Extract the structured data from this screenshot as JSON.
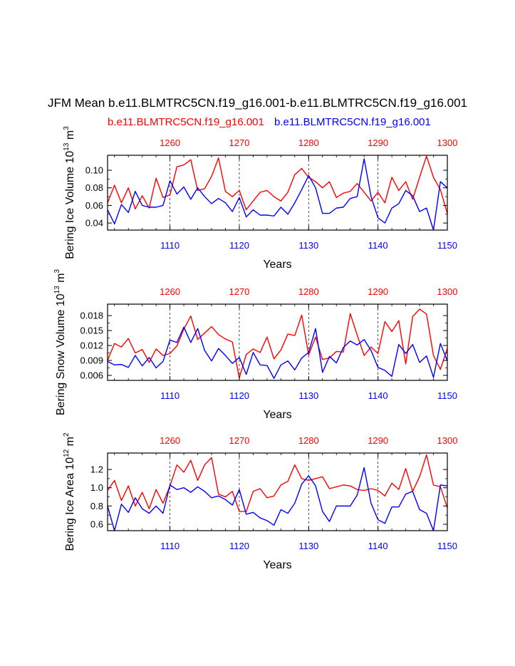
{
  "title": "JFM Mean b.e11.BLMTRC5CN.f19_g16.001-b.e11.BLMTRC5CN.f19_g16.001",
  "legend": {
    "red_label": "b.e11.BLMTRC5CN.f19_g16.001",
    "blue_label": "b.e11.BLMTRC5CN.f19_g16.001"
  },
  "colors": {
    "red": "#ff0000",
    "blue": "#0000ff",
    "axis": "#000000"
  },
  "chart_data": [
    {
      "type": "line",
      "ylabel_base": "Bering Ice Volume 10",
      "ylabel_exp": "13",
      "ylabel_unit": " m",
      "ylabel_unit_exp": "3",
      "xlabel": "Years",
      "bottom_xlim": [
        1101,
        1150
      ],
      "top_xlim": [
        1251,
        1300
      ],
      "ylim": [
        0.032,
        0.117
      ],
      "yticks": [
        0.04,
        0.06,
        0.08,
        0.1
      ],
      "ytick_labels": [
        "0.04",
        "0.06",
        "0.08",
        "0.10"
      ],
      "bottom_ticks": [
        1110,
        1120,
        1130,
        1140,
        1150
      ],
      "top_ticks": [
        1260,
        1270,
        1280,
        1290,
        1300
      ],
      "series": [
        {
          "name": "red",
          "x_axis": "top",
          "x": [
            1251,
            1252,
            1253,
            1254,
            1255,
            1256,
            1257,
            1258,
            1259,
            1260,
            1261,
            1262,
            1263,
            1264,
            1265,
            1266,
            1267,
            1268,
            1269,
            1270,
            1271,
            1272,
            1273,
            1274,
            1275,
            1276,
            1277,
            1278,
            1279,
            1280,
            1281,
            1282,
            1283,
            1284,
            1285,
            1286,
            1287,
            1288,
            1289,
            1290,
            1291,
            1292,
            1293,
            1294,
            1295,
            1296,
            1297,
            1298,
            1299,
            1300
          ],
          "values": [
            0.063,
            0.083,
            0.063,
            0.08,
            0.056,
            0.071,
            0.057,
            0.091,
            0.069,
            0.072,
            0.104,
            0.106,
            0.112,
            0.077,
            0.079,
            0.093,
            0.114,
            0.076,
            0.07,
            0.077,
            0.055,
            0.065,
            0.075,
            0.077,
            0.07,
            0.065,
            0.075,
            0.095,
            0.102,
            0.092,
            0.087,
            0.08,
            0.087,
            0.069,
            0.074,
            0.076,
            0.085,
            0.075,
            0.065,
            0.075,
            0.063,
            0.092,
            0.077,
            0.087,
            0.067,
            0.092,
            0.116,
            0.092,
            0.078,
            0.051
          ]
        },
        {
          "name": "blue",
          "x_axis": "bottom",
          "x": [
            1101,
            1102,
            1103,
            1104,
            1105,
            1106,
            1107,
            1108,
            1109,
            1110,
            1111,
            1112,
            1113,
            1114,
            1115,
            1116,
            1117,
            1118,
            1119,
            1120,
            1121,
            1122,
            1123,
            1124,
            1125,
            1126,
            1127,
            1128,
            1129,
            1130,
            1131,
            1132,
            1133,
            1134,
            1135,
            1136,
            1137,
            1138,
            1139,
            1140,
            1141,
            1142,
            1143,
            1144,
            1145,
            1146,
            1147,
            1148,
            1149,
            1150
          ],
          "values": [
            0.055,
            0.039,
            0.061,
            0.052,
            0.076,
            0.06,
            0.058,
            0.058,
            0.06,
            0.088,
            0.073,
            0.081,
            0.067,
            0.08,
            0.07,
            0.062,
            0.068,
            0.063,
            0.053,
            0.069,
            0.047,
            0.055,
            0.049,
            0.049,
            0.048,
            0.058,
            0.05,
            0.063,
            0.078,
            0.094,
            0.08,
            0.051,
            0.051,
            0.057,
            0.058,
            0.068,
            0.07,
            0.113,
            0.07,
            0.046,
            0.04,
            0.057,
            0.062,
            0.077,
            0.071,
            0.053,
            0.057,
            0.032,
            0.087,
            0.08
          ]
        }
      ]
    },
    {
      "type": "line",
      "ylabel_base": "Bering Snow Volume 10",
      "ylabel_exp": "13",
      "ylabel_unit": " m",
      "ylabel_unit_exp": "3",
      "xlabel": "Years",
      "bottom_xlim": [
        1101,
        1150
      ],
      "top_xlim": [
        1251,
        1300
      ],
      "ylim": [
        0.005,
        0.0203
      ],
      "yticks": [
        0.006,
        0.009,
        0.012,
        0.015,
        0.018
      ],
      "ytick_labels": [
        "0.006",
        "0.009",
        "0.012",
        "0.015",
        "0.018"
      ],
      "bottom_ticks": [
        1110,
        1120,
        1130,
        1140,
        1150
      ],
      "top_ticks": [
        1260,
        1270,
        1280,
        1290,
        1300
      ],
      "series": [
        {
          "name": "red",
          "x_axis": "top",
          "x": [
            1251,
            1252,
            1253,
            1254,
            1255,
            1256,
            1257,
            1258,
            1259,
            1260,
            1261,
            1262,
            1263,
            1264,
            1265,
            1266,
            1267,
            1268,
            1269,
            1270,
            1271,
            1272,
            1273,
            1274,
            1275,
            1276,
            1277,
            1278,
            1279,
            1280,
            1281,
            1282,
            1283,
            1284,
            1285,
            1286,
            1287,
            1288,
            1289,
            1290,
            1291,
            1292,
            1293,
            1294,
            1295,
            1296,
            1297,
            1298,
            1299,
            1300
          ],
          "values": [
            0.009,
            0.0124,
            0.0117,
            0.0134,
            0.0105,
            0.0112,
            0.0086,
            0.0113,
            0.01,
            0.0104,
            0.0119,
            0.0153,
            0.0179,
            0.0132,
            0.0145,
            0.0158,
            0.0142,
            0.0133,
            0.0127,
            0.0055,
            0.0102,
            0.0113,
            0.0106,
            0.0137,
            0.0093,
            0.0111,
            0.0143,
            0.014,
            0.0181,
            0.0101,
            0.0137,
            0.0092,
            0.0095,
            0.0108,
            0.0107,
            0.0184,
            0.0141,
            0.01,
            0.0117,
            0.0104,
            0.0168,
            0.0148,
            0.017,
            0.0083,
            0.0178,
            0.0193,
            0.0183,
            0.01,
            0.0072,
            0.0114
          ]
        },
        {
          "name": "blue",
          "x_axis": "bottom",
          "x": [
            1101,
            1102,
            1103,
            1104,
            1105,
            1106,
            1107,
            1108,
            1109,
            1110,
            1111,
            1112,
            1113,
            1114,
            1115,
            1116,
            1117,
            1118,
            1119,
            1120,
            1121,
            1122,
            1123,
            1124,
            1125,
            1126,
            1127,
            1128,
            1129,
            1130,
            1131,
            1132,
            1133,
            1134,
            1135,
            1136,
            1137,
            1138,
            1139,
            1140,
            1141,
            1142,
            1143,
            1144,
            1145,
            1146,
            1147,
            1148,
            1149,
            1150
          ],
          "values": [
            0.0088,
            0.0081,
            0.0082,
            0.0076,
            0.01,
            0.0079,
            0.0096,
            0.0075,
            0.0088,
            0.0131,
            0.0126,
            0.0157,
            0.0126,
            0.0154,
            0.011,
            0.0089,
            0.0114,
            0.01,
            0.0084,
            0.0096,
            0.0062,
            0.0106,
            0.0081,
            0.008,
            0.0054,
            0.0081,
            0.0089,
            0.0071,
            0.0095,
            0.0106,
            0.0154,
            0.0066,
            0.0098,
            0.0085,
            0.0116,
            0.0129,
            0.0121,
            0.0132,
            0.011,
            0.0076,
            0.007,
            0.0058,
            0.0122,
            0.0104,
            0.0122,
            0.0086,
            0.0099,
            0.0056,
            0.0124,
            0.0089
          ]
        }
      ]
    },
    {
      "type": "line",
      "ylabel_base": "Bering Ice Area 10",
      "ylabel_exp": "12",
      "ylabel_unit": " m",
      "ylabel_unit_exp": "2",
      "xlabel": "Years",
      "bottom_xlim": [
        1101,
        1150
      ],
      "top_xlim": [
        1251,
        1300
      ],
      "ylim": [
        0.53,
        1.38
      ],
      "yticks": [
        0.6,
        0.8,
        1.0,
        1.2
      ],
      "ytick_labels": [
        "0.6",
        "0.8",
        "1.0",
        "1.2"
      ],
      "bottom_ticks": [
        1110,
        1120,
        1130,
        1140,
        1150
      ],
      "top_ticks": [
        1260,
        1270,
        1280,
        1290,
        1300
      ],
      "series": [
        {
          "name": "red",
          "x_axis": "top",
          "x": [
            1251,
            1252,
            1253,
            1254,
            1255,
            1256,
            1257,
            1258,
            1259,
            1260,
            1261,
            1262,
            1263,
            1264,
            1265,
            1266,
            1267,
            1268,
            1269,
            1270,
            1271,
            1272,
            1273,
            1274,
            1275,
            1276,
            1277,
            1278,
            1279,
            1280,
            1281,
            1282,
            1283,
            1284,
            1285,
            1286,
            1287,
            1288,
            1289,
            1290,
            1291,
            1292,
            1293,
            1294,
            1295,
            1296,
            1297,
            1298,
            1299,
            1300
          ],
          "values": [
            0.97,
            1.08,
            0.86,
            1.02,
            0.8,
            0.95,
            0.77,
            0.98,
            0.83,
            1.02,
            1.25,
            1.17,
            1.3,
            1.08,
            1.25,
            1.33,
            0.93,
            0.9,
            0.96,
            0.74,
            0.74,
            0.96,
            0.99,
            0.89,
            0.91,
            1.03,
            1.07,
            1.25,
            1.1,
            1.08,
            1.1,
            1.12,
            0.99,
            1.01,
            1.03,
            1.02,
            0.98,
            0.97,
            0.99,
            0.97,
            0.91,
            1.05,
            0.98,
            1.21,
            0.96,
            1.12,
            1.36,
            1.03,
            1.01,
            0.78
          ]
        },
        {
          "name": "blue",
          "x_axis": "bottom",
          "x": [
            1101,
            1102,
            1103,
            1104,
            1105,
            1106,
            1107,
            1108,
            1109,
            1110,
            1111,
            1112,
            1113,
            1114,
            1115,
            1116,
            1117,
            1118,
            1119,
            1120,
            1121,
            1122,
            1123,
            1124,
            1125,
            1126,
            1127,
            1128,
            1129,
            1130,
            1131,
            1132,
            1133,
            1134,
            1135,
            1136,
            1137,
            1138,
            1139,
            1140,
            1141,
            1142,
            1143,
            1144,
            1145,
            1146,
            1147,
            1148,
            1149,
            1150
          ],
          "values": [
            0.8,
            0.53,
            0.82,
            0.73,
            0.89,
            0.77,
            0.72,
            0.8,
            0.72,
            1.03,
            0.98,
            1.0,
            0.95,
            1.01,
            0.96,
            0.89,
            0.91,
            0.87,
            0.81,
            0.98,
            0.71,
            0.73,
            0.67,
            0.64,
            0.59,
            0.76,
            0.72,
            0.83,
            1.04,
            1.13,
            1.02,
            0.74,
            0.63,
            0.8,
            0.8,
            0.8,
            0.92,
            1.22,
            0.83,
            0.65,
            0.61,
            0.79,
            0.79,
            0.93,
            0.96,
            0.76,
            0.72,
            0.53,
            1.03,
            1.02
          ]
        }
      ]
    }
  ]
}
